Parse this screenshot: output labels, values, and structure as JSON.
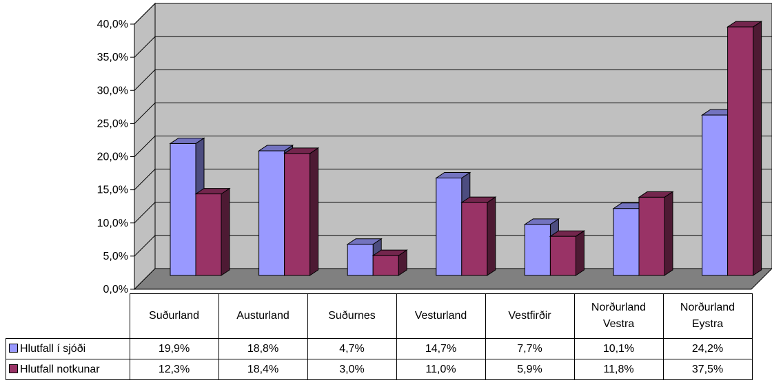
{
  "chart_data": {
    "type": "bar",
    "categories": [
      "Suðurland",
      "Austurland",
      "Suðurnes",
      "Vesturland",
      "Vestfirðir",
      "Norðurland Vestra",
      "Norðurland Eystra"
    ],
    "category_lines": [
      [
        "Suðurland"
      ],
      [
        "Austurland"
      ],
      [
        "Suðurnes"
      ],
      [
        "Vesturland"
      ],
      [
        "Vestfirðir"
      ],
      [
        "Norðurland",
        "Vestra"
      ],
      [
        "Norðurland",
        "Eystra"
      ]
    ],
    "series": [
      {
        "name": "Hlutfall í sjóði",
        "values": [
          19.9,
          18.8,
          4.7,
          14.7,
          7.7,
          10.1,
          24.2
        ],
        "labels": [
          "19,9%",
          "18,8%",
          "4,7%",
          "14,7%",
          "7,7%",
          "10,1%",
          "24,2%"
        ],
        "color": "#9999ff"
      },
      {
        "name": "Hlutfall notkunar",
        "values": [
          12.3,
          18.4,
          3.0,
          11.0,
          5.9,
          11.8,
          37.5
        ],
        "labels": [
          "12,3%",
          "18,4%",
          "3,0%",
          "11,0%",
          "5,9%",
          "11,8%",
          "37,5%"
        ],
        "color": "#993366"
      }
    ],
    "ylim": [
      0,
      40
    ],
    "yticks": [
      "0,0%",
      "5,0%",
      "10,0%",
      "15,0%",
      "20,0%",
      "25,0%",
      "30,0%",
      "35,0%",
      "40,0%"
    ],
    "grid": true,
    "three_d": true,
    "wall_color": "#c0c0c0",
    "floor_color": "#808080",
    "legend_placement": "data-table-left",
    "xlabel": "",
    "ylabel": ""
  }
}
